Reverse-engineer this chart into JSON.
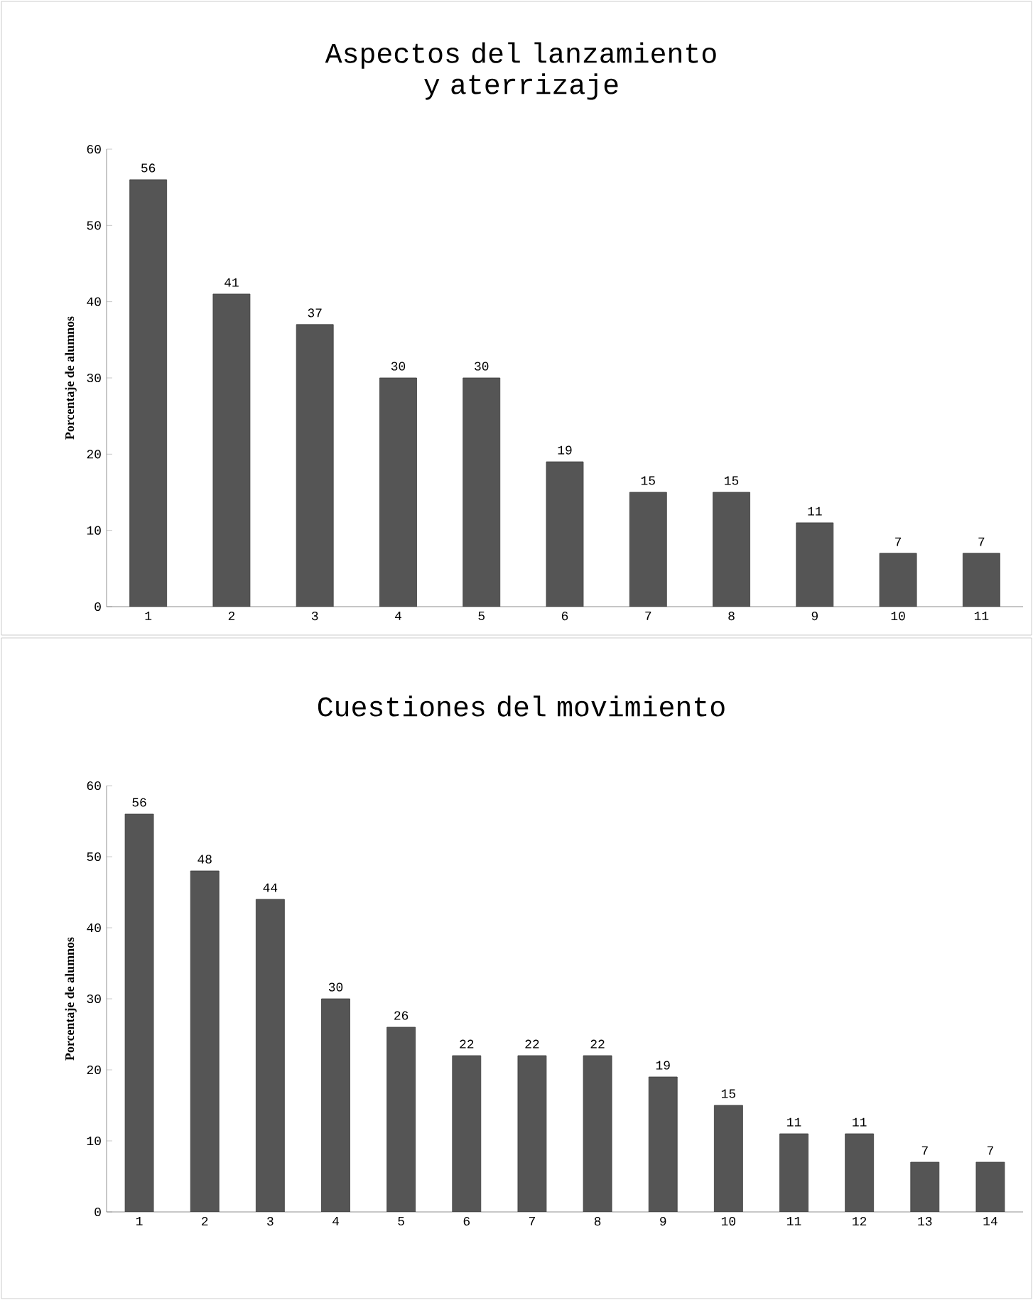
{
  "chart_data": [
    {
      "type": "bar",
      "title": "Aspectos del lanzamiento y aterrizaje",
      "ylabel": "Porcentaje de alumnos",
      "categories": [
        "1",
        "2",
        "3",
        "4",
        "5",
        "6",
        "7",
        "8",
        "9",
        "10",
        "11"
      ],
      "values": [
        56,
        41,
        37,
        30,
        30,
        19,
        15,
        15,
        11,
        7,
        7
      ],
      "color": "#555555",
      "ylim": [
        0,
        60
      ],
      "yticks": [
        0,
        10,
        20,
        30,
        40,
        50,
        60
      ],
      "data_labels": true
    },
    {
      "type": "bar",
      "title": "Cuestiones del movimiento",
      "ylabel": "Porcentaje de alumnos",
      "categories": [
        "1",
        "2",
        "3",
        "4",
        "5",
        "6",
        "7",
        "8",
        "9",
        "10",
        "11",
        "12",
        "13",
        "14"
      ],
      "values": [
        56,
        48,
        44,
        30,
        26,
        22,
        22,
        22,
        19,
        15,
        11,
        11,
        7,
        7
      ],
      "color": "#555555",
      "ylim": [
        0,
        60
      ],
      "yticks": [
        0,
        10,
        20,
        30,
        40,
        50,
        60
      ],
      "data_labels": true
    }
  ]
}
